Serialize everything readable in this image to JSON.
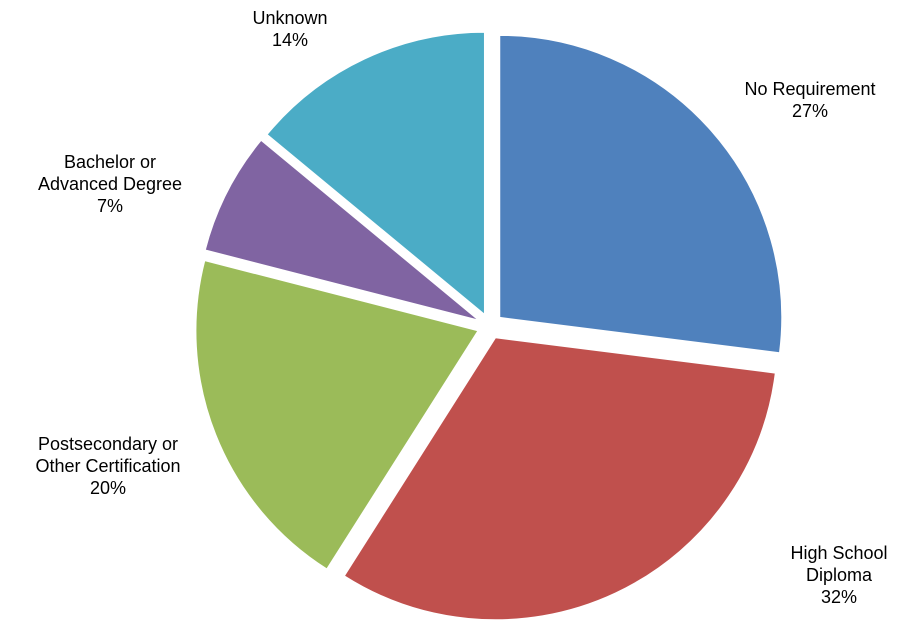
{
  "chart_data": {
    "type": "pie",
    "title": "",
    "exploded": true,
    "start_angle_deg": 0,
    "direction": "clockwise",
    "slices": [
      {
        "name": "No Requirement",
        "label_lines": [
          "No Requirement"
        ],
        "percent_label": "27%",
        "value": 27,
        "color": "#4F81BD"
      },
      {
        "name": "High School Diploma",
        "label_lines": [
          "High School",
          "Diploma"
        ],
        "percent_label": "32%",
        "value": 32,
        "color": "#C0504D"
      },
      {
        "name": "Postsecondary or Other Certification",
        "label_lines": [
          "Postsecondary or",
          "Other Certification"
        ],
        "percent_label": "20%",
        "value": 20,
        "color": "#9BBB59"
      },
      {
        "name": "Bachelor or Advanced Degree",
        "label_lines": [
          "Bachelor or",
          "Advanced Degree"
        ],
        "percent_label": "7%",
        "value": 7,
        "color": "#8064A2"
      },
      {
        "name": "Unknown",
        "label_lines": [
          "Unknown"
        ],
        "percent_label": "14%",
        "value": 14,
        "color": "#4BACC6"
      }
    ]
  }
}
